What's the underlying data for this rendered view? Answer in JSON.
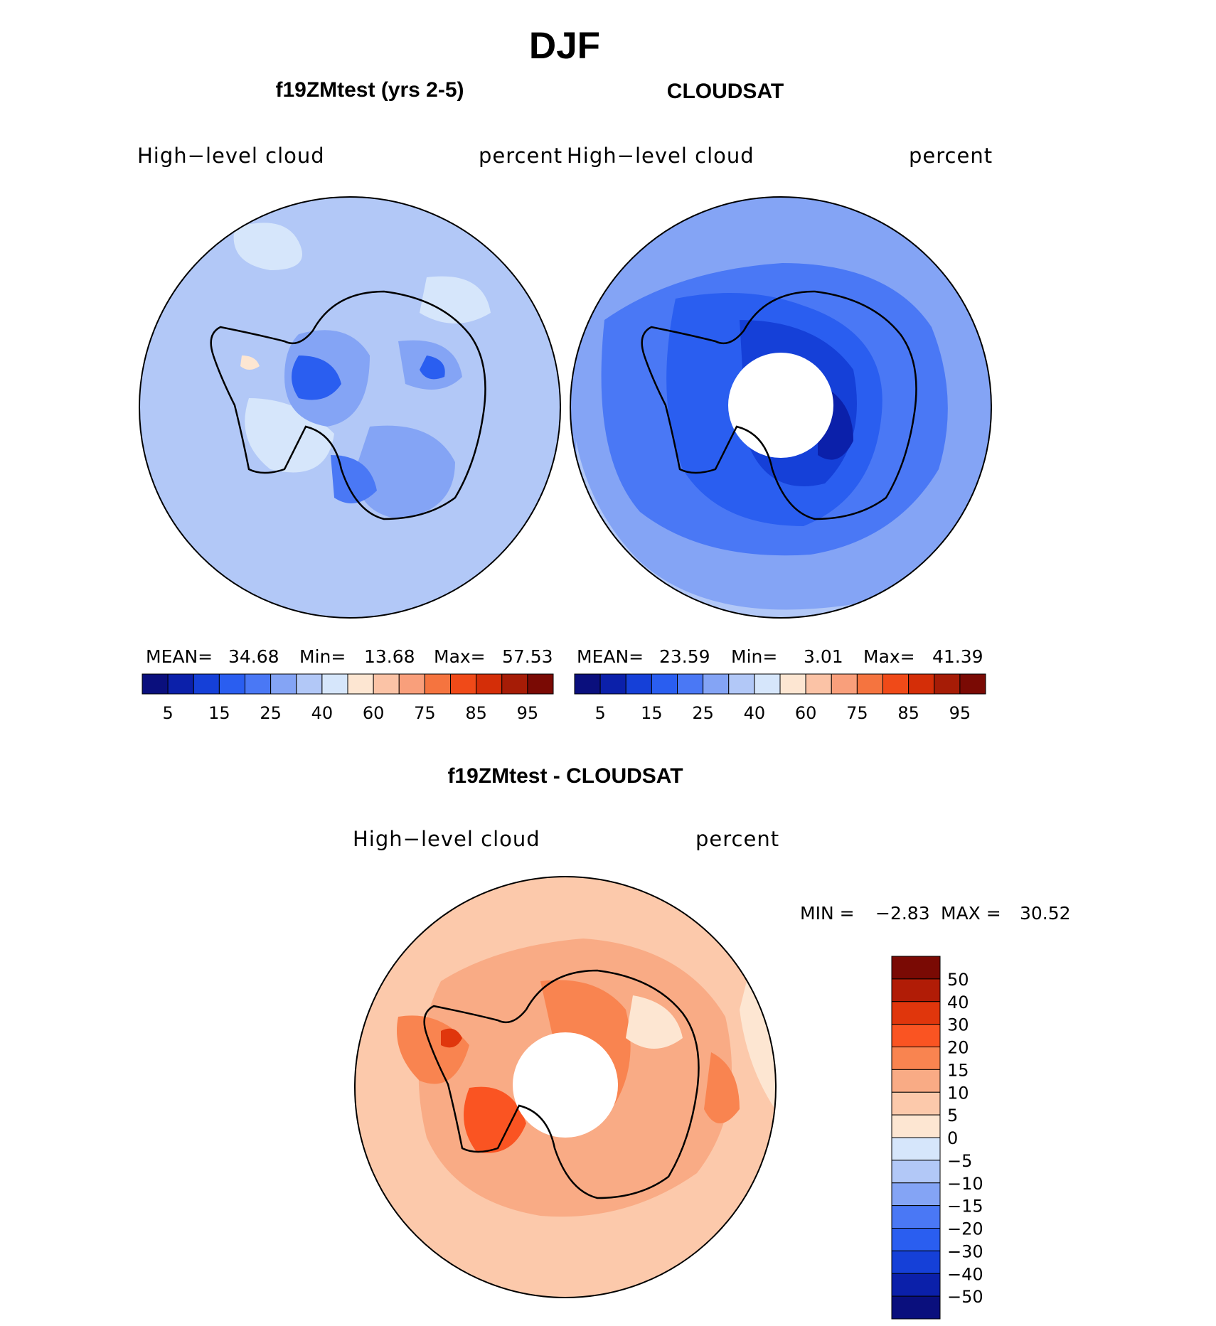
{
  "title": "DJF",
  "panels": [
    {
      "title": "f19ZMtest (yrs 2-5)",
      "variable": "High−level cloud",
      "units": "percent",
      "stats": {
        "mean_label": "MEAN=",
        "mean": "34.68",
        "min_label": "Min=",
        "min": "13.68",
        "max_label": "Max=",
        "max": "57.53"
      }
    },
    {
      "title": "CLOUDSAT",
      "variable": "High−level cloud",
      "units": "percent",
      "stats": {
        "mean_label": "MEAN=",
        "mean": "23.59",
        "min_label": "Min=",
        "min": "3.01",
        "max_label": "Max=",
        "max": "41.39"
      }
    }
  ],
  "diff": {
    "title": "f19ZMtest - CLOUDSAT",
    "variable": "High−level cloud",
    "units": "percent",
    "minmax": {
      "min_label": "MIN =",
      "min": "−2.83",
      "max_label": "MAX =",
      "max": "30.52"
    }
  },
  "chart_data": [
    {
      "type": "heatmap",
      "title": "f19ZMtest (yrs 2-5)",
      "projection": "south-polar-stereographic",
      "colorbar": {
        "orientation": "horizontal",
        "tick_labels": [
          "5",
          "15",
          "25",
          "40",
          "60",
          "75",
          "85",
          "95"
        ],
        "colors": [
          "#0a0f7d",
          "#0b20aa",
          "#1540d8",
          "#2a5ef0",
          "#4a78f5",
          "#84a4f5",
          "#b2c8f7",
          "#d6e6fb",
          "#fde6d2",
          "#fbc3a6",
          "#f99f7b",
          "#f5743f",
          "#f04a18",
          "#d42e08",
          "#a61c06",
          "#7a0a04"
        ]
      },
      "values": {
        "mean": 34.68,
        "min": 13.68,
        "max": 57.53
      }
    },
    {
      "type": "heatmap",
      "title": "CLOUDSAT",
      "projection": "south-polar-stereographic",
      "colorbar": {
        "orientation": "horizontal",
        "tick_labels": [
          "5",
          "15",
          "25",
          "40",
          "60",
          "75",
          "85",
          "95"
        ],
        "colors": [
          "#0a0f7d",
          "#0b20aa",
          "#1540d8",
          "#2a5ef0",
          "#4a78f5",
          "#84a4f5",
          "#b2c8f7",
          "#d6e6fb",
          "#fde6d2",
          "#fbc3a6",
          "#f99f7b",
          "#f5743f",
          "#f04a18",
          "#d42e08",
          "#a61c06",
          "#7a0a04"
        ]
      },
      "values": {
        "mean": 23.59,
        "min": 3.01,
        "max": 41.39
      }
    },
    {
      "type": "heatmap",
      "title": "f19ZMtest - CLOUDSAT",
      "projection": "south-polar-stereographic",
      "colorbar": {
        "orientation": "vertical",
        "tick_labels": [
          "50",
          "40",
          "30",
          "20",
          "15",
          "10",
          "5",
          "0",
          "−5",
          "−10",
          "−15",
          "−20",
          "−30",
          "−40",
          "−50"
        ],
        "colors": [
          "#7a0a04",
          "#b11c06",
          "#e0360c",
          "#fa5422",
          "#f98450",
          "#f9ab85",
          "#fcc9ab",
          "#fde6d2",
          "#d6e6fb",
          "#b2c8f7",
          "#84a4f5",
          "#4a78f5",
          "#2a5ef0",
          "#1540d8",
          "#0b20aa",
          "#0a0f7d"
        ]
      },
      "values": {
        "min": -2.83,
        "max": 30.52
      }
    }
  ]
}
